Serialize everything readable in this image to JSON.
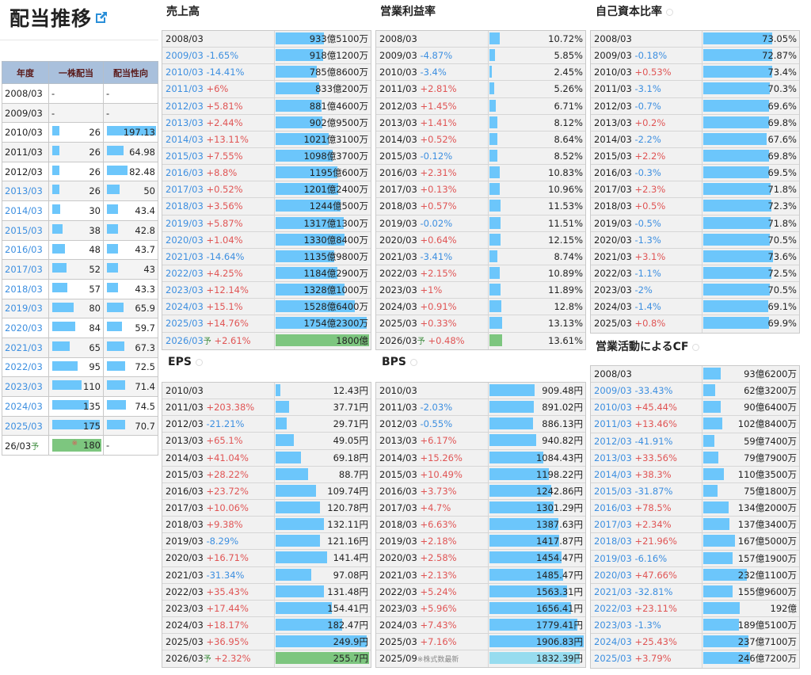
{
  "page": {
    "title": "配当推移",
    "external_link_icon": "external-link-icon"
  },
  "dividend": {
    "headers": [
      "年度",
      "一株配当",
      "配当性向"
    ],
    "rows": [
      {
        "year": "2008/03",
        "dps": "-",
        "payout": "-",
        "link": false
      },
      {
        "year": "2009/03",
        "dps": "-",
        "payout": "-",
        "link": false
      },
      {
        "year": "2010/03",
        "dps": "26",
        "payout": "197.13",
        "link": false
      },
      {
        "year": "2011/03",
        "dps": "26",
        "payout": "64.98",
        "link": false
      },
      {
        "year": "2012/03",
        "dps": "26",
        "payout": "82.48",
        "link": false
      },
      {
        "year": "2013/03",
        "dps": "26",
        "payout": "50",
        "link": true
      },
      {
        "year": "2014/03",
        "dps": "30",
        "payout": "43.4",
        "link": true
      },
      {
        "year": "2015/03",
        "dps": "38",
        "payout": "42.8",
        "link": true
      },
      {
        "year": "2016/03",
        "dps": "48",
        "payout": "43.7",
        "link": true
      },
      {
        "year": "2017/03",
        "dps": "52",
        "payout": "43",
        "link": true
      },
      {
        "year": "2018/03",
        "dps": "57",
        "payout": "43.3",
        "link": true
      },
      {
        "year": "2019/03",
        "dps": "80",
        "payout": "65.9",
        "link": true
      },
      {
        "year": "2020/03",
        "dps": "84",
        "payout": "59.7",
        "link": true
      },
      {
        "year": "2021/03",
        "dps": "65",
        "payout": "67.3",
        "link": true
      },
      {
        "year": "2022/03",
        "dps": "95",
        "payout": "72.5",
        "link": true
      },
      {
        "year": "2023/03",
        "dps": "110",
        "payout": "71.4",
        "link": true
      },
      {
        "year": "2024/03",
        "dps": "135",
        "payout": "74.5",
        "link": true
      },
      {
        "year": "2025/03",
        "dps": "175",
        "payout": "70.7",
        "link": true
      },
      {
        "year": "26/03",
        "forecast": "予",
        "dps_mark": "※",
        "dps": "180",
        "payout": "-",
        "link": false
      }
    ]
  },
  "colors": {
    "bar": "#6cc6fb",
    "forecast_bar": "#7dc67f",
    "latest_bar": "#97dcef",
    "up": "#e05555",
    "down": "#3d8fe0",
    "header_bg": "#a9c0dc"
  },
  "sales": {
    "title": "売上高",
    "link": true,
    "rows": [
      {
        "year": "2008/03",
        "change": "",
        "value": "933億5100万"
      },
      {
        "year": "2009/03",
        "change": "-1.65%",
        "value": "918億1200万"
      },
      {
        "year": "2010/03",
        "change": "-14.41%",
        "value": "785億8600万"
      },
      {
        "year": "2011/03",
        "change": "+6%",
        "value": "833億200万"
      },
      {
        "year": "2012/03",
        "change": "+5.81%",
        "value": "881億4600万"
      },
      {
        "year": "2013/03",
        "change": "+2.44%",
        "value": "902億9500万"
      },
      {
        "year": "2014/03",
        "change": "+13.11%",
        "value": "1021億3100万"
      },
      {
        "year": "2015/03",
        "change": "+7.55%",
        "value": "1098億3700万"
      },
      {
        "year": "2016/03",
        "change": "+8.8%",
        "value": "1195億600万"
      },
      {
        "year": "2017/03",
        "change": "+0.52%",
        "value": "1201億2400万"
      },
      {
        "year": "2018/03",
        "change": "+3.56%",
        "value": "1244億500万"
      },
      {
        "year": "2019/03",
        "change": "+5.87%",
        "value": "1317億1300万"
      },
      {
        "year": "2020/03",
        "change": "+1.04%",
        "value": "1330億8400万"
      },
      {
        "year": "2021/03",
        "change": "-14.64%",
        "value": "1135億9800万"
      },
      {
        "year": "2022/03",
        "change": "+4.25%",
        "value": "1184億2900万"
      },
      {
        "year": "2023/03",
        "change": "+12.14%",
        "value": "1328億1000万"
      },
      {
        "year": "2024/03",
        "change": "+15.1%",
        "value": "1528億6400万"
      },
      {
        "year": "2025/03",
        "change": "+14.76%",
        "value": "1754億2300万"
      },
      {
        "year": "2026/03",
        "forecast": "予",
        "change": "+2.61%",
        "value": "1800億"
      }
    ]
  },
  "op_margin": {
    "title": "営業利益率",
    "link": false,
    "rows": [
      {
        "year": "2008/03",
        "change": "",
        "value": "10.72%"
      },
      {
        "year": "2009/03",
        "change": "-4.87%",
        "value": "5.85%"
      },
      {
        "year": "2010/03",
        "change": "-3.4%",
        "value": "2.45%"
      },
      {
        "year": "2011/03",
        "change": "+2.81%",
        "value": "5.26%"
      },
      {
        "year": "2012/03",
        "change": "+1.45%",
        "value": "6.71%"
      },
      {
        "year": "2013/03",
        "change": "+1.41%",
        "value": "8.12%"
      },
      {
        "year": "2014/03",
        "change": "+0.52%",
        "value": "8.64%"
      },
      {
        "year": "2015/03",
        "change": "-0.12%",
        "value": "8.52%"
      },
      {
        "year": "2016/03",
        "change": "+2.31%",
        "value": "10.83%"
      },
      {
        "year": "2017/03",
        "change": "+0.13%",
        "value": "10.96%"
      },
      {
        "year": "2018/03",
        "change": "+0.57%",
        "value": "11.53%"
      },
      {
        "year": "2019/03",
        "change": "-0.02%",
        "value": "11.51%"
      },
      {
        "year": "2020/03",
        "change": "+0.64%",
        "value": "12.15%"
      },
      {
        "year": "2021/03",
        "change": "-3.41%",
        "value": "8.74%"
      },
      {
        "year": "2022/03",
        "change": "+2.15%",
        "value": "10.89%"
      },
      {
        "year": "2023/03",
        "change": "+1%",
        "value": "11.89%"
      },
      {
        "year": "2024/03",
        "change": "+0.91%",
        "value": "12.8%"
      },
      {
        "year": "2025/03",
        "change": "+0.33%",
        "value": "13.13%"
      },
      {
        "year": "2026/03",
        "forecast": "予",
        "change": "+0.48%",
        "value": "13.61%"
      }
    ]
  },
  "equity_ratio": {
    "title": "自己資本比率",
    "link": false,
    "rows": [
      {
        "year": "2008/03",
        "change": "",
        "value": "73.05%"
      },
      {
        "year": "2009/03",
        "change": "-0.18%",
        "value": "72.87%"
      },
      {
        "year": "2010/03",
        "change": "+0.53%",
        "value": "73.4%"
      },
      {
        "year": "2011/03",
        "change": "-3.1%",
        "value": "70.3%"
      },
      {
        "year": "2012/03",
        "change": "-0.7%",
        "value": "69.6%"
      },
      {
        "year": "2013/03",
        "change": "+0.2%",
        "value": "69.8%"
      },
      {
        "year": "2014/03",
        "change": "-2.2%",
        "value": "67.6%"
      },
      {
        "year": "2015/03",
        "change": "+2.2%",
        "value": "69.8%"
      },
      {
        "year": "2016/03",
        "change": "-0.3%",
        "value": "69.5%"
      },
      {
        "year": "2017/03",
        "change": "+2.3%",
        "value": "71.8%"
      },
      {
        "year": "2018/03",
        "change": "+0.5%",
        "value": "72.3%"
      },
      {
        "year": "2019/03",
        "change": "-0.5%",
        "value": "71.8%"
      },
      {
        "year": "2020/03",
        "change": "-1.3%",
        "value": "70.5%"
      },
      {
        "year": "2021/03",
        "change": "+3.1%",
        "value": "73.6%"
      },
      {
        "year": "2022/03",
        "change": "-1.1%",
        "value": "72.5%"
      },
      {
        "year": "2023/03",
        "change": "-2%",
        "value": "70.5%"
      },
      {
        "year": "2024/03",
        "change": "-1.4%",
        "value": "69.1%"
      },
      {
        "year": "2025/03",
        "change": "+0.8%",
        "value": "69.9%"
      }
    ]
  },
  "eps": {
    "title": "EPS",
    "link": false,
    "rows": [
      {
        "year": "2010/03",
        "change": "",
        "value": "12.43円"
      },
      {
        "year": "2011/03",
        "change": "+203.38%",
        "value": "37.71円"
      },
      {
        "year": "2012/03",
        "change": "-21.21%",
        "value": "29.71円"
      },
      {
        "year": "2013/03",
        "change": "+65.1%",
        "value": "49.05円"
      },
      {
        "year": "2014/03",
        "change": "+41.04%",
        "value": "69.18円"
      },
      {
        "year": "2015/03",
        "change": "+28.22%",
        "value": "88.7円"
      },
      {
        "year": "2016/03",
        "change": "+23.72%",
        "value": "109.74円"
      },
      {
        "year": "2017/03",
        "change": "+10.06%",
        "value": "120.78円"
      },
      {
        "year": "2018/03",
        "change": "+9.38%",
        "value": "132.11円"
      },
      {
        "year": "2019/03",
        "change": "-8.29%",
        "value": "121.16円"
      },
      {
        "year": "2020/03",
        "change": "+16.71%",
        "value": "141.4円"
      },
      {
        "year": "2021/03",
        "change": "-31.34%",
        "value": "97.08円"
      },
      {
        "year": "2022/03",
        "change": "+35.43%",
        "value": "131.48円"
      },
      {
        "year": "2023/03",
        "change": "+17.44%",
        "value": "154.41円"
      },
      {
        "year": "2024/03",
        "change": "+18.17%",
        "value": "182.47円"
      },
      {
        "year": "2025/03",
        "change": "+36.95%",
        "value": "249.9円"
      },
      {
        "year": "2026/03",
        "forecast": "予",
        "change": "+2.32%",
        "value": "255.7円"
      }
    ]
  },
  "bps": {
    "title": "BPS",
    "link": false,
    "rows": [
      {
        "year": "2010/03",
        "change": "",
        "value": "909.48円"
      },
      {
        "year": "2011/03",
        "change": "-2.03%",
        "value": "891.02円"
      },
      {
        "year": "2012/03",
        "change": "-0.55%",
        "value": "886.13円"
      },
      {
        "year": "2013/03",
        "change": "+6.17%",
        "value": "940.82円"
      },
      {
        "year": "2014/03",
        "change": "+15.26%",
        "value": "1084.43円"
      },
      {
        "year": "2015/03",
        "change": "+10.49%",
        "value": "1198.22円"
      },
      {
        "year": "2016/03",
        "change": "+3.73%",
        "value": "1242.86円"
      },
      {
        "year": "2017/03",
        "change": "+4.7%",
        "value": "1301.29円"
      },
      {
        "year": "2018/03",
        "change": "+6.63%",
        "value": "1387.63円"
      },
      {
        "year": "2019/03",
        "change": "+2.18%",
        "value": "1417.87円"
      },
      {
        "year": "2020/03",
        "change": "+2.58%",
        "value": "1454.47円"
      },
      {
        "year": "2021/03",
        "change": "+2.13%",
        "value": "1485.47円"
      },
      {
        "year": "2022/03",
        "change": "+5.24%",
        "value": "1563.31円"
      },
      {
        "year": "2023/03",
        "change": "+5.96%",
        "value": "1656.41円"
      },
      {
        "year": "2024/03",
        "change": "+7.43%",
        "value": "1779.41円"
      },
      {
        "year": "2025/03",
        "change": "+7.16%",
        "value": "1906.83円"
      },
      {
        "year": "2025/09",
        "note": "※株式数最新",
        "change": "",
        "value": "1832.39円",
        "latest": true
      }
    ]
  },
  "operating_cf": {
    "title": "営業活動によるCF",
    "link": true,
    "rows": [
      {
        "year": "2008/03",
        "change": "",
        "value": "93億6200万"
      },
      {
        "year": "2009/03",
        "change": "-33.43%",
        "value": "62億3200万"
      },
      {
        "year": "2010/03",
        "change": "+45.44%",
        "value": "90億6400万"
      },
      {
        "year": "2011/03",
        "change": "+13.46%",
        "value": "102億8400万"
      },
      {
        "year": "2012/03",
        "change": "-41.91%",
        "value": "59億7400万"
      },
      {
        "year": "2013/03",
        "change": "+33.56%",
        "value": "79億7900万"
      },
      {
        "year": "2014/03",
        "change": "+38.3%",
        "value": "110億3500万"
      },
      {
        "year": "2015/03",
        "change": "-31.87%",
        "value": "75億1800万"
      },
      {
        "year": "2016/03",
        "change": "+78.5%",
        "value": "134億2000万"
      },
      {
        "year": "2017/03",
        "change": "+2.34%",
        "value": "137億3400万"
      },
      {
        "year": "2018/03",
        "change": "+21.96%",
        "value": "167億5000万"
      },
      {
        "year": "2019/03",
        "change": "-6.16%",
        "value": "157億1900万"
      },
      {
        "year": "2020/03",
        "change": "+47.66%",
        "value": "232億1100万"
      },
      {
        "year": "2021/03",
        "change": "-32.81%",
        "value": "155億9600万"
      },
      {
        "year": "2022/03",
        "change": "+23.11%",
        "value": "192億"
      },
      {
        "year": "2023/03",
        "change": "-1.3%",
        "value": "189億5100万"
      },
      {
        "year": "2024/03",
        "change": "+25.43%",
        "value": "237億7100万"
      },
      {
        "year": "2025/03",
        "change": "+3.79%",
        "value": "246億7200万"
      }
    ]
  }
}
